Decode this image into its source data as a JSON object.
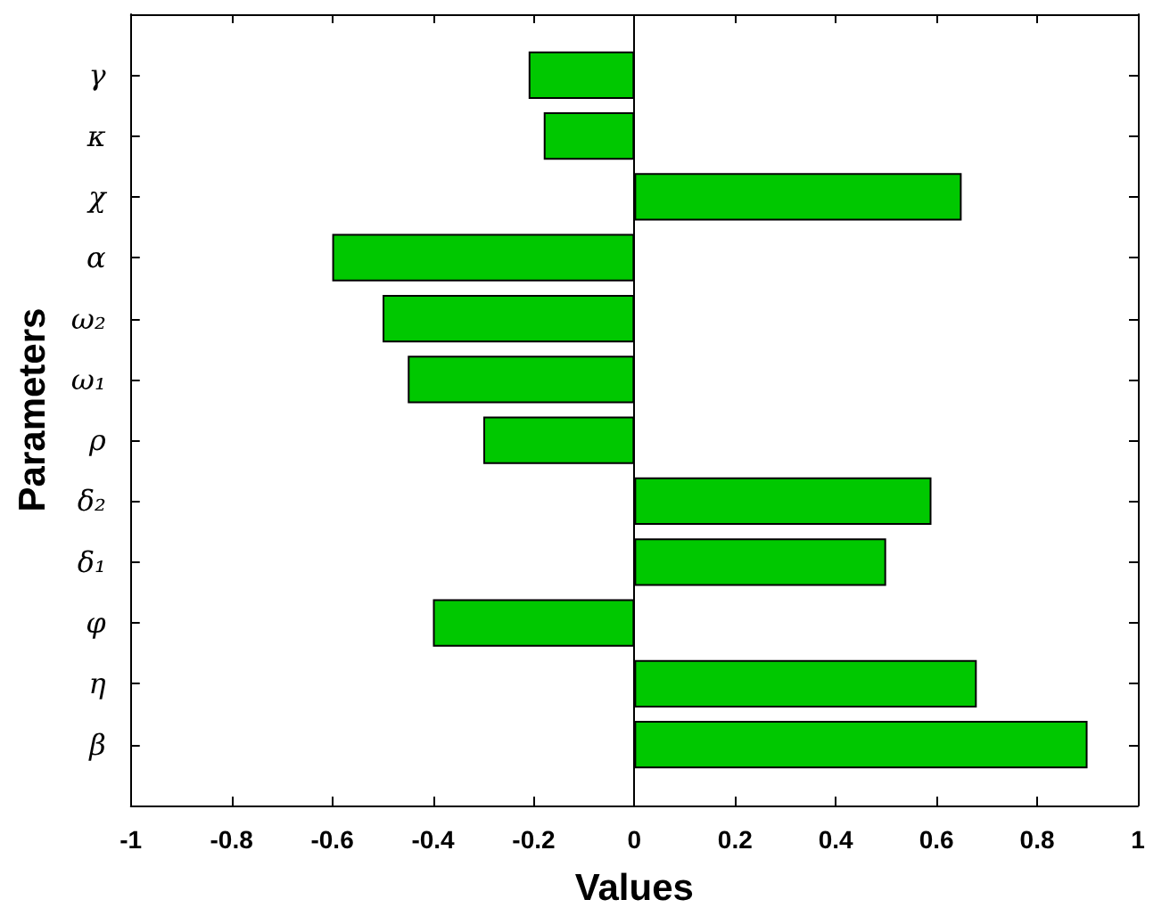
{
  "chart_data": {
    "type": "bar",
    "orientation": "horizontal",
    "xlabel": "Values",
    "ylabel": "Parameters",
    "categories": [
      "γ",
      "κ",
      "χ",
      "α",
      "ω₂",
      "ω₁",
      "ρ",
      "δ₂",
      "δ₁",
      "φ",
      "η",
      "β"
    ],
    "values": [
      -0.21,
      -0.18,
      0.65,
      -0.6,
      -0.5,
      -0.45,
      -0.3,
      0.59,
      0.5,
      -0.4,
      0.68,
      0.9
    ],
    "color": "#00c800",
    "xlim": [
      -1,
      1
    ],
    "xticks": [
      -1,
      -0.8,
      -0.6,
      -0.4,
      -0.2,
      0,
      0.2,
      0.4,
      0.6,
      0.8,
      1
    ],
    "ref_lines": [
      {
        "axis": "x",
        "value": 0,
        "color": "#000000"
      }
    ]
  }
}
